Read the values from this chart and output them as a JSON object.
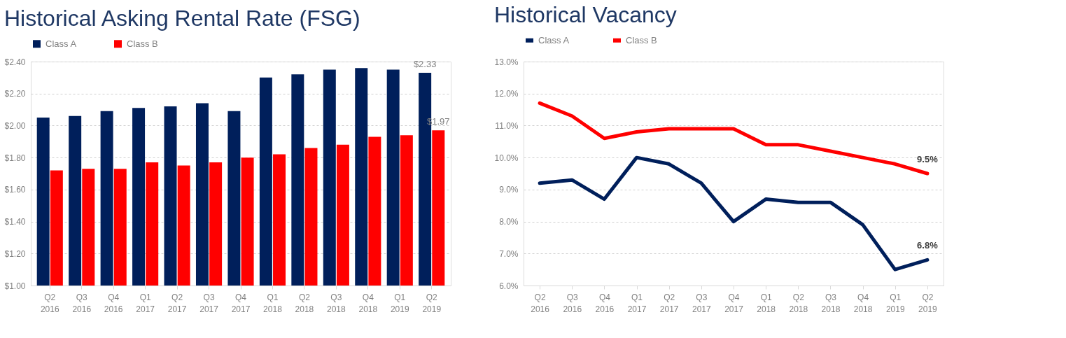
{
  "chart_data": [
    {
      "type": "bar",
      "title": "Historical Asking Rental Rate (FSG)",
      "categories": [
        "Q2 2016",
        "Q3 2016",
        "Q4 2016",
        "Q1 2017",
        "Q2 2017",
        "Q3 2017",
        "Q4 2017",
        "Q1 2018",
        "Q2 2018",
        "Q3 2018",
        "Q4 2018",
        "Q1 2019",
        "Q2 2019"
      ],
      "series": [
        {
          "name": "Class A",
          "color": "#001f5b",
          "values": [
            2.05,
            2.06,
            2.09,
            2.11,
            2.12,
            2.14,
            2.09,
            2.3,
            2.32,
            2.35,
            2.36,
            2.35,
            2.33
          ],
          "value_labels": [
            null,
            null,
            null,
            null,
            null,
            null,
            null,
            null,
            null,
            null,
            null,
            null,
            "$2.33"
          ]
        },
        {
          "name": "Class B",
          "color": "#ff0000",
          "values": [
            1.72,
            1.73,
            1.73,
            1.77,
            1.75,
            1.77,
            1.8,
            1.82,
            1.86,
            1.88,
            1.93,
            1.94,
            1.97
          ],
          "value_labels": [
            null,
            null,
            null,
            null,
            null,
            null,
            null,
            null,
            null,
            null,
            null,
            null,
            "$1.97"
          ]
        }
      ],
      "ylim": [
        1.0,
        2.4
      ],
      "yticks": [
        {
          "value": 1.0,
          "label": "$1.00"
        },
        {
          "value": 1.2,
          "label": "$1.20"
        },
        {
          "value": 1.4,
          "label": "$1.40"
        },
        {
          "value": 1.6,
          "label": "$1.60"
        },
        {
          "value": 1.8,
          "label": "$1.80"
        },
        {
          "value": 2.0,
          "label": "$2.00"
        },
        {
          "value": 2.2,
          "label": "$2.20"
        },
        {
          "value": 2.4,
          "label": "$2.40"
        }
      ],
      "grid": "y",
      "legend": "top"
    },
    {
      "type": "line",
      "title": "Historical Vacancy",
      "categories": [
        "Q2 2016",
        "Q3 2016",
        "Q4 2016",
        "Q1 2017",
        "Q2 2017",
        "Q3 2017",
        "Q4 2017",
        "Q1 2018",
        "Q2 2018",
        "Q3 2018",
        "Q4 2018",
        "Q1 2019",
        "Q2 2019"
      ],
      "series": [
        {
          "name": "Class A",
          "color": "#001f5b",
          "values": [
            9.2,
            9.3,
            8.7,
            10.0,
            9.8,
            9.2,
            8.0,
            8.7,
            8.6,
            8.6,
            7.9,
            6.5,
            6.8
          ],
          "value_labels": [
            null,
            null,
            null,
            null,
            null,
            null,
            null,
            null,
            null,
            null,
            null,
            null,
            "6.8%"
          ]
        },
        {
          "name": "Class B",
          "color": "#ff0000",
          "values": [
            11.7,
            11.3,
            10.6,
            10.8,
            10.9,
            10.9,
            10.9,
            10.4,
            10.4,
            10.2,
            10.0,
            9.8,
            9.5
          ],
          "value_labels": [
            null,
            null,
            null,
            null,
            null,
            null,
            null,
            null,
            null,
            null,
            null,
            null,
            "9.5%"
          ]
        }
      ],
      "ylim": [
        6.0,
        13.0
      ],
      "yticks": [
        {
          "value": 6,
          "label": "6.0%"
        },
        {
          "value": 7,
          "label": "7.0%"
        },
        {
          "value": 8,
          "label": "8.0%"
        },
        {
          "value": 9,
          "label": "9.0%"
        },
        {
          "value": 10,
          "label": "10.0%"
        },
        {
          "value": 11,
          "label": "11.0%"
        },
        {
          "value": 12,
          "label": "12.0%"
        },
        {
          "value": 13,
          "label": "13.0%"
        }
      ],
      "grid": "y",
      "legend": "top",
      "marker": "none",
      "line_style": "solid"
    }
  ]
}
